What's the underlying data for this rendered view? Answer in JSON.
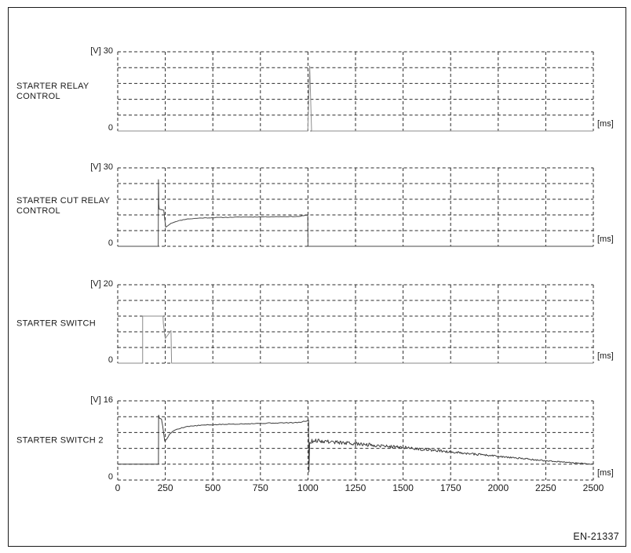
{
  "page": {
    "footer_code": "EN-21337"
  },
  "x_axis": {
    "unit": "[ms]",
    "xlim": [
      0,
      2500
    ],
    "ticks": [
      "0",
      "250",
      "500",
      "750",
      "1000",
      "1250",
      "1500",
      "1750",
      "2000",
      "2250",
      "2500"
    ]
  },
  "grid": {
    "rows": 5,
    "cols": 10,
    "dash": "4 3",
    "color": "#2b2b2b"
  },
  "chart_data": [
    {
      "type": "line",
      "label": "STARTER RELAY\nCONTROL",
      "v_label": "[V] 30",
      "zero_label": "0",
      "ms_label": "[ms]",
      "ylim": [
        0,
        30
      ],
      "color": "#8e8e8e",
      "points": [
        [
          0,
          0
        ],
        [
          999,
          0
        ],
        [
          1009,
          24.6
        ],
        [
          1019,
          0
        ],
        [
          2500,
          0
        ]
      ]
    },
    {
      "type": "line",
      "label": "STARTER CUT RELAY\nCONTROL",
      "v_label": "[V] 30",
      "zero_label": "0",
      "ms_label": "[ms]",
      "ylim": [
        0,
        30
      ],
      "color": "#4a4a4a",
      "points": [
        [
          0,
          0
        ],
        [
          213,
          0
        ],
        [
          214,
          25.5
        ],
        [
          216,
          16
        ],
        [
          218,
          14.2
        ],
        [
          242,
          13.8
        ],
        [
          252,
          7.3
        ],
        [
          262,
          7.8
        ],
        [
          280,
          8.8
        ],
        [
          310,
          9.6
        ],
        [
          360,
          10.4
        ],
        [
          430,
          10.8
        ],
        [
          520,
          11.0
        ],
        [
          650,
          11.2
        ],
        [
          800,
          11.3
        ],
        [
          950,
          11.4
        ],
        [
          996,
          11.9
        ],
        [
          999,
          11.9
        ],
        [
          1000,
          0
        ],
        [
          2500,
          0
        ]
      ],
      "noise": [
        {
          "from": 280,
          "to": 994,
          "amp_start": 0.1,
          "amp_end": 0.1,
          "step": 8,
          "seed": 11
        }
      ]
    },
    {
      "type": "line",
      "label": "STARTER SWITCH",
      "v_label": "[V] 20",
      "zero_label": "0",
      "ms_label": "[ms]",
      "ylim": [
        0,
        20
      ],
      "color": "#8a8a8a",
      "points": [
        [
          0,
          0
        ],
        [
          131,
          0
        ],
        [
          131,
          12
        ],
        [
          238,
          12
        ],
        [
          240,
          10
        ],
        [
          250,
          6.3
        ],
        [
          280,
          8.3
        ],
        [
          283,
          0
        ],
        [
          2500,
          0
        ]
      ]
    },
    {
      "type": "line",
      "label": "STARTER SWITCH 2",
      "v_label": "[V] 16",
      "zero_label": "0",
      "ms_label": "[ms]",
      "ylim": [
        0,
        16
      ],
      "color": "#3d3d3d",
      "points": [
        [
          0,
          3.2
        ],
        [
          214,
          3.2
        ],
        [
          215,
          13.1
        ],
        [
          219,
          12.5
        ],
        [
          230,
          12.3
        ],
        [
          236,
          11.0
        ],
        [
          247,
          7.9
        ],
        [
          256,
          8.2
        ],
        [
          275,
          9.4
        ],
        [
          305,
          10.2
        ],
        [
          360,
          10.8
        ],
        [
          450,
          11.1
        ],
        [
          600,
          11.3
        ],
        [
          800,
          11.5
        ],
        [
          950,
          11.6
        ],
        [
          998,
          12.0
        ],
        [
          1003,
          12.1
        ],
        [
          1005,
          1.6
        ],
        [
          1009,
          7.6
        ],
        [
          1030,
          8.0
        ],
        [
          1100,
          7.8
        ],
        [
          1250,
          7.3
        ],
        [
          1400,
          6.9
        ],
        [
          1500,
          6.6
        ],
        [
          1750,
          5.7
        ],
        [
          2000,
          4.8
        ],
        [
          2250,
          3.9
        ],
        [
          2500,
          3.2
        ]
      ],
      "noise": [
        {
          "from": 256,
          "to": 994,
          "amp_start": 0.08,
          "amp_end": 0.08,
          "step": 8,
          "seed": 5
        },
        {
          "from": 1009,
          "to": 2500,
          "amp_start": 0.42,
          "amp_end": 0.07,
          "step": 4,
          "seed": 9
        }
      ]
    }
  ]
}
